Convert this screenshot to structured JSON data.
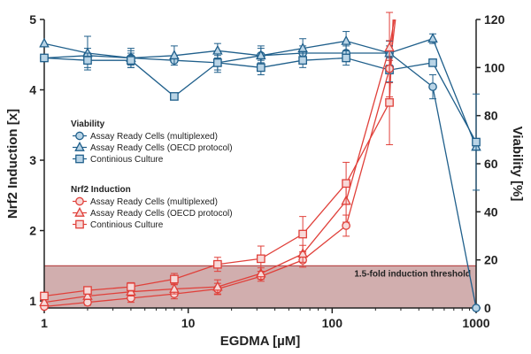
{
  "chart_data": {
    "type": "line",
    "xlabel": "EGDMA [µM]",
    "ylabel_left": "Nrf2 Induction [x]",
    "ylabel_right": "Viability [%]",
    "xscale": "log",
    "xlim": [
      1,
      1000
    ],
    "ylim_left": [
      0.9,
      5
    ],
    "ylim_right": [
      0,
      120
    ],
    "xticks": [
      "1",
      "10",
      "100",
      "1000"
    ],
    "yticks_left": [
      "1",
      "2",
      "3",
      "4",
      "5"
    ],
    "yticks_right": [
      "0",
      "20",
      "40",
      "60",
      "80",
      "100",
      "120"
    ],
    "threshold": {
      "value": 1.5,
      "label": "1.5-fold induction threshold",
      "fill": "#c9a0a0"
    },
    "colors": {
      "viability": "#1f5f8b",
      "nrf2": "#e0403a"
    },
    "legend": {
      "viability_title": "Viability",
      "nrf2_title": "Nrf2 Induction",
      "items": [
        "Assay Ready Cells (multiplexed)",
        "Assay Ready Cells (OECD protocol)",
        "Continious Culture"
      ]
    },
    "series": [
      {
        "name": "Viability - Assay Ready Cells (multiplexed)",
        "axis": "right",
        "group": "viability",
        "marker": "circle",
        "x": [
          1,
          2,
          4,
          8,
          16,
          32,
          62.5,
          125,
          250,
          500,
          1000
        ],
        "values": [
          104,
          105,
          104,
          103,
          102,
          105,
          106,
          106,
          106,
          92,
          0
        ],
        "err": [
          0,
          3,
          3,
          0,
          4,
          3,
          3,
          3,
          3,
          5,
          0
        ]
      },
      {
        "name": "Viability - Assay Ready Cells (OECD protocol)",
        "axis": "right",
        "group": "viability",
        "marker": "triangle",
        "x": [
          1,
          2,
          4,
          8,
          16,
          32,
          62.5,
          125,
          250,
          500,
          1000
        ],
        "values": [
          110,
          106,
          104,
          105,
          107,
          105,
          108,
          111,
          106,
          112,
          67
        ],
        "err": [
          0,
          7,
          4,
          4,
          3,
          4,
          4,
          4,
          5,
          2,
          0
        ]
      },
      {
        "name": "Viability - Continious Culture",
        "axis": "right",
        "group": "viability",
        "marker": "square",
        "x": [
          1,
          2,
          4,
          8,
          16,
          32,
          62.5,
          125,
          250,
          500,
          1000
        ],
        "values": [
          104,
          103,
          103,
          88,
          102,
          100,
          103,
          104,
          99,
          102,
          69
        ],
        "err": [
          0,
          3,
          3,
          0,
          3,
          3,
          3,
          3,
          5,
          0,
          20
        ]
      },
      {
        "name": "Nrf2 Induction - Assay Ready Cells (multiplexed)",
        "axis": "left",
        "group": "nrf2",
        "marker": "circle",
        "x": [
          1,
          2,
          4,
          8,
          16,
          32,
          62.5,
          125,
          250,
          275
        ],
        "values": [
          0.92,
          0.98,
          1.04,
          1.1,
          1.17,
          1.35,
          1.58,
          2.07,
          4.3,
          5.0
        ],
        "err": [
          0,
          0.04,
          0.06,
          0.07,
          0.08,
          0.07,
          0.1,
          0.15,
          0.4,
          0
        ]
      },
      {
        "name": "Nrf2 Induction - Assay Ready Cells (OECD protocol)",
        "axis": "left",
        "group": "nrf2",
        "marker": "triangle",
        "x": [
          1,
          2,
          4,
          8,
          16,
          32,
          62.5,
          125,
          250,
          270
        ],
        "values": [
          0.98,
          1.07,
          1.13,
          1.17,
          1.2,
          1.39,
          1.67,
          2.42,
          4.6,
          5.0
        ],
        "err": [
          0,
          0.05,
          0.06,
          0.07,
          0.1,
          0.08,
          0.12,
          0.3,
          0.5,
          0
        ]
      },
      {
        "name": "Nrf2 Induction - Continious Culture",
        "axis": "left",
        "group": "nrf2",
        "marker": "square",
        "x": [
          1,
          2,
          4,
          8,
          16,
          32,
          62.5,
          125,
          250,
          265
        ],
        "values": [
          1.07,
          1.15,
          1.2,
          1.31,
          1.52,
          1.6,
          1.95,
          2.67,
          3.82,
          5.0
        ],
        "err": [
          0,
          0.05,
          0.06,
          0.08,
          0.1,
          0.18,
          0.25,
          0.3,
          0.6,
          0
        ]
      }
    ]
  }
}
